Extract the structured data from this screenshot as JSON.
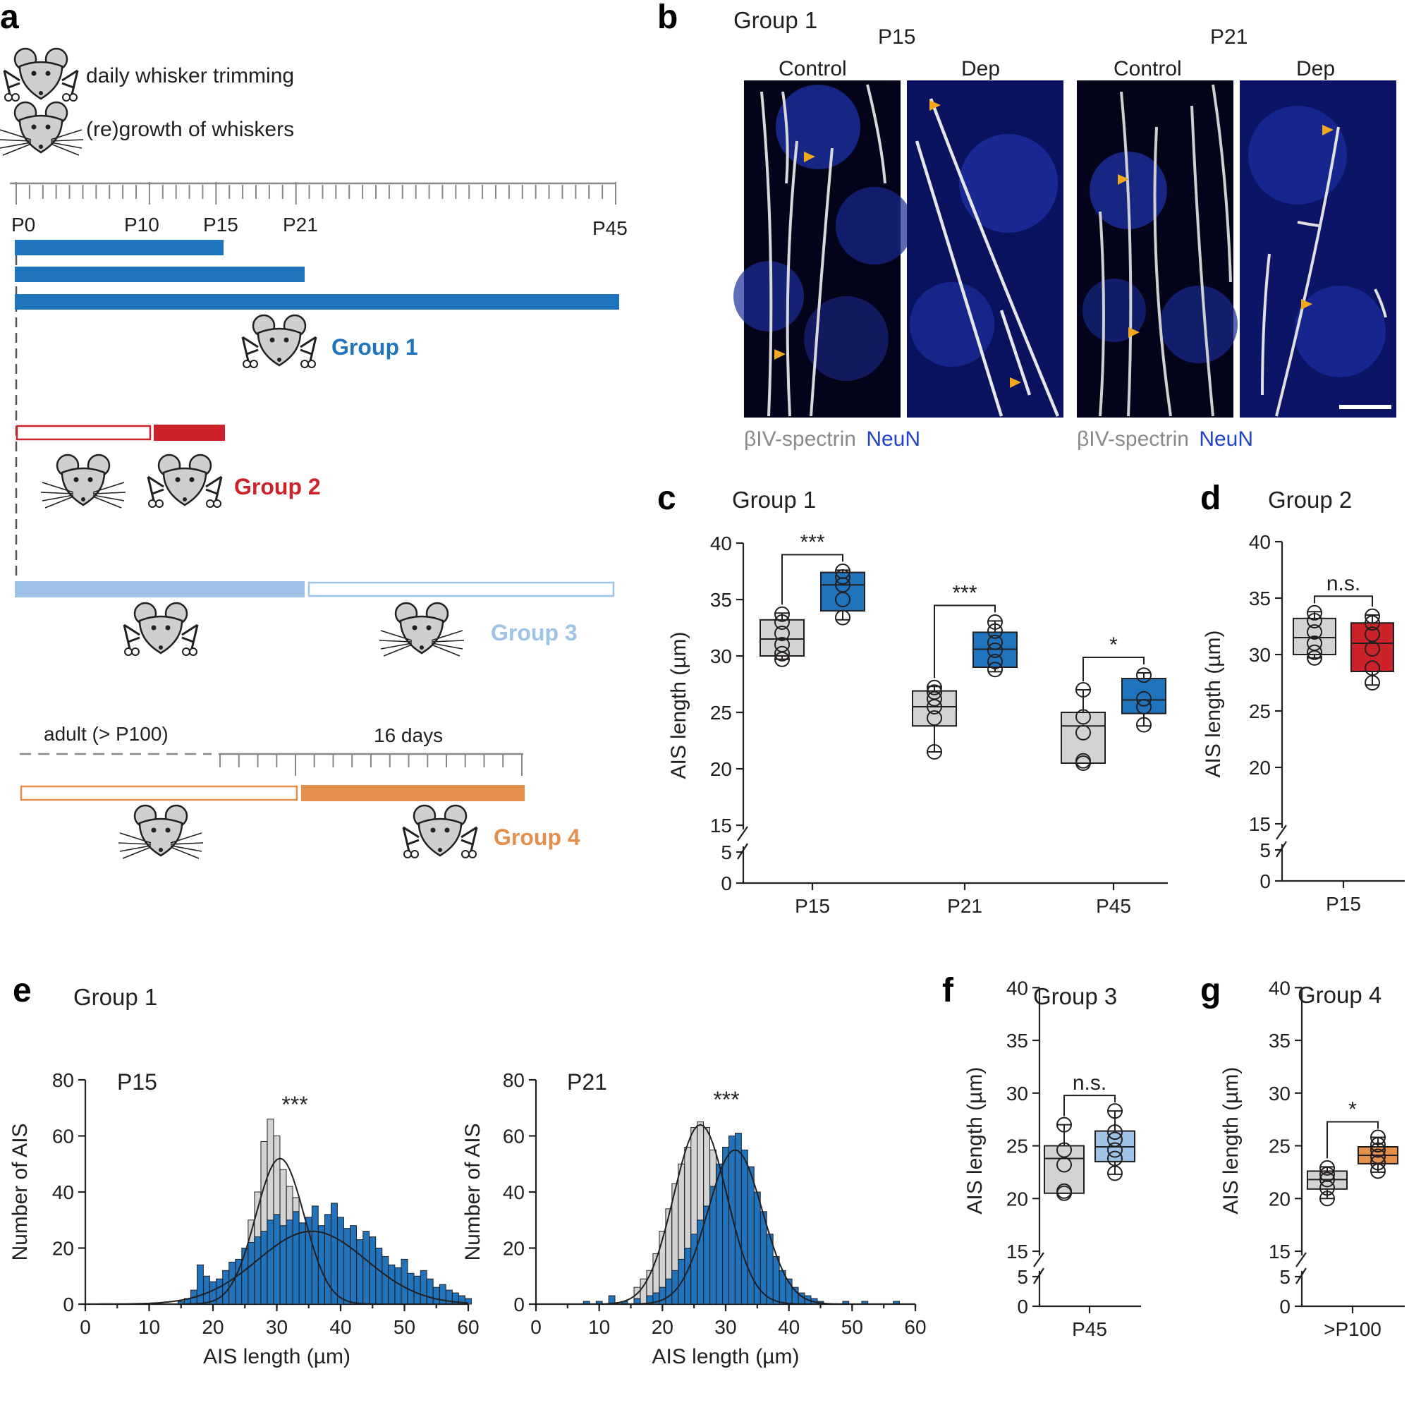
{
  "colors": {
    "g1": "#1f74bd",
    "g2": "#cc2229",
    "g3": "#9ec3e6",
    "g4": "#e48f4c",
    "control": "#d3d3d3",
    "dark": "#231f20",
    "arrow": "#f4a81d",
    "neun": "#2142c8"
  },
  "panel_labels": [
    "a",
    "b",
    "c",
    "d",
    "e",
    "f",
    "g"
  ],
  "panel_a": {
    "legend": {
      "trim": "daily whisker trimming",
      "regrow": "(re)growth of whiskers"
    },
    "timeline_labels": [
      "P0",
      "P10",
      "P15",
      "P21",
      "P45"
    ],
    "groups": [
      "Group 1",
      "Group 2",
      "Group 3",
      "Group 4"
    ],
    "adult_label": "adult (> P100)",
    "days_label": "16 days",
    "icons": [
      "mouse-trim-icon",
      "mouse-regrow-icon"
    ]
  },
  "panel_b": {
    "title": "Group 1",
    "ages": [
      "P15",
      "P21"
    ],
    "conditions": [
      "Control",
      "Dep"
    ],
    "stain1": "βIV-spectrin",
    "stain2": "NeuN"
  },
  "chart_data": [
    {
      "id": "c",
      "type": "box",
      "title": "Group 1",
      "ylabel": "AIS length (µm)",
      "yticks": [
        0,
        5,
        15,
        20,
        25,
        30,
        35,
        40
      ],
      "ylim": [
        0,
        40
      ],
      "axis_break": [
        5,
        15
      ],
      "categories": [
        "P15",
        "P21",
        "P45"
      ],
      "series": [
        {
          "name": "Control",
          "color": "#d3d3d3",
          "boxes": [
            {
              "category": "P15",
              "min": 29.7,
              "q1": 30.0,
              "median": 31.5,
              "q3": 33.2,
              "max": 33.8,
              "points": [
                29.7,
                30.2,
                31.0,
                32.0,
                33.0,
                33.7
              ]
            },
            {
              "category": "P21",
              "min": 21.5,
              "q1": 23.8,
              "median": 25.5,
              "q3": 26.9,
              "max": 27.3,
              "points": [
                21.5,
                24.5,
                25.5,
                26.2,
                26.8,
                27.2
              ]
            },
            {
              "category": "P45",
              "min": 20.5,
              "q1": 20.5,
              "median": 23.8,
              "q3": 25.0,
              "max": 27.0,
              "points": [
                20.5,
                20.7,
                23.2,
                24.6,
                27.0
              ]
            }
          ]
        },
        {
          "name": "Dep",
          "color": "#1f74bd",
          "boxes": [
            {
              "category": "P15",
              "min": 33.2,
              "q1": 34.0,
              "median": 36.3,
              "q3": 37.4,
              "max": 37.6,
              "points": [
                33.4,
                35.0,
                36.3,
                37.0,
                37.5
              ]
            },
            {
              "category": "P21",
              "min": 28.6,
              "q1": 29.0,
              "median": 30.6,
              "q3": 32.1,
              "max": 33.1,
              "points": [
                28.8,
                29.5,
                30.5,
                31.2,
                32.2,
                33.0
              ]
            },
            {
              "category": "P45",
              "min": 23.8,
              "q1": 24.9,
              "median": 26.1,
              "q3": 28.0,
              "max": 28.5,
              "points": [
                23.9,
                25.5,
                26.2,
                28.3
              ]
            }
          ]
        }
      ],
      "significance": [
        "***",
        "***",
        "*"
      ]
    },
    {
      "id": "d",
      "type": "box",
      "title": "Group 2",
      "ylabel": "AIS length (µm)",
      "yticks": [
        0,
        5,
        15,
        20,
        25,
        30,
        35,
        40
      ],
      "ylim": [
        0,
        40
      ],
      "axis_break": [
        5,
        15
      ],
      "categories": [
        "P15"
      ],
      "series": [
        {
          "name": "Control",
          "color": "#d3d3d3",
          "boxes": [
            {
              "category": "P15",
              "min": 29.7,
              "q1": 30.0,
              "median": 31.5,
              "q3": 33.2,
              "max": 33.8,
              "points": [
                29.7,
                30.2,
                31.0,
                32.0,
                33.0,
                33.7
              ]
            }
          ]
        },
        {
          "name": "Dep",
          "color": "#cc2229",
          "boxes": [
            {
              "category": "P15",
              "min": 27.3,
              "q1": 28.5,
              "median": 31.0,
              "q3": 32.8,
              "max": 33.5,
              "points": [
                27.5,
                28.8,
                30.5,
                31.8,
                32.8,
                33.4
              ]
            }
          ]
        }
      ],
      "significance": [
        "n.s."
      ]
    },
    {
      "id": "e1",
      "type": "histogram",
      "title": "P15",
      "xlabel": "AIS length (µm)",
      "ylabel": "Number of AIS",
      "xlim": [
        0,
        60
      ],
      "ylim": [
        0,
        80
      ],
      "xticks": [
        0,
        10,
        20,
        30,
        40,
        50,
        60
      ],
      "yticks": [
        0,
        20,
        40,
        60,
        80
      ],
      "series": [
        {
          "name": "Control",
          "color": "#d3d3d3",
          "fit": {
            "mean": 30.5,
            "sd": 3.8,
            "peak": 52
          },
          "values": [
            [
              26,
              30
            ],
            [
              27,
              40
            ],
            [
              28,
              58
            ],
            [
              29,
              66
            ],
            [
              30,
              60
            ],
            [
              31,
              48
            ],
            [
              32,
              42
            ],
            [
              33,
              38
            ],
            [
              34,
              22
            ]
          ]
        },
        {
          "name": "Dep",
          "color": "#1f74bd",
          "fit": {
            "mean": 35.5,
            "sd": 8.5,
            "peak": 26
          },
          "values": [
            [
              15,
              1
            ],
            [
              16,
              2
            ],
            [
              17,
              5
            ],
            [
              18,
              14
            ],
            [
              19,
              10
            ],
            [
              20,
              8
            ],
            [
              21,
              9
            ],
            [
              22,
              12
            ],
            [
              23,
              15
            ],
            [
              24,
              16
            ],
            [
              25,
              20
            ],
            [
              26,
              22
            ],
            [
              27,
              24
            ],
            [
              28,
              26
            ],
            [
              29,
              30
            ],
            [
              30,
              32
            ],
            [
              31,
              28
            ],
            [
              32,
              30
            ],
            [
              33,
              33
            ],
            [
              34,
              29
            ],
            [
              35,
              31
            ],
            [
              36,
              35
            ],
            [
              37,
              28
            ],
            [
              38,
              32
            ],
            [
              39,
              36
            ],
            [
              40,
              31
            ],
            [
              41,
              27
            ],
            [
              42,
              28
            ],
            [
              43,
              23
            ],
            [
              44,
              26
            ],
            [
              45,
              24
            ],
            [
              46,
              20
            ],
            [
              47,
              17
            ],
            [
              48,
              14
            ],
            [
              49,
              13
            ],
            [
              50,
              16
            ],
            [
              51,
              11
            ],
            [
              52,
              10
            ],
            [
              53,
              12
            ],
            [
              54,
              9
            ],
            [
              55,
              6
            ],
            [
              56,
              7
            ],
            [
              57,
              5
            ],
            [
              58,
              4
            ],
            [
              59,
              3
            ],
            [
              60,
              2
            ]
          ]
        }
      ],
      "significance": "***"
    },
    {
      "id": "e2",
      "type": "histogram",
      "title": "P21",
      "xlabel": "AIS length (µm)",
      "ylabel": "Number of AIS",
      "xlim": [
        0,
        60
      ],
      "ylim": [
        0,
        80
      ],
      "xticks": [
        0,
        10,
        20,
        30,
        40,
        50,
        60
      ],
      "yticks": [
        0,
        20,
        40,
        60,
        80
      ],
      "series": [
        {
          "name": "Control",
          "color": "#d3d3d3",
          "fit": {
            "mean": 26,
            "sd": 4.2,
            "peak": 64
          },
          "values": [
            [
              16,
              6
            ],
            [
              17,
              9
            ],
            [
              18,
              12
            ],
            [
              19,
              18
            ],
            [
              20,
              26
            ],
            [
              21,
              34
            ],
            [
              22,
              43
            ],
            [
              23,
              50
            ],
            [
              24,
              56
            ],
            [
              25,
              63
            ],
            [
              26,
              65
            ],
            [
              27,
              63
            ],
            [
              28,
              55
            ],
            [
              29,
              48
            ],
            [
              30,
              38
            ],
            [
              31,
              26
            ],
            [
              32,
              19
            ],
            [
              33,
              12
            ],
            [
              34,
              6
            ]
          ]
        },
        {
          "name": "Dep",
          "color": "#1f74bd",
          "fit": {
            "mean": 31.5,
            "sd": 4.3,
            "peak": 55
          },
          "values": [
            [
              8,
              1
            ],
            [
              10,
              1
            ],
            [
              12,
              3
            ],
            [
              14,
              1
            ],
            [
              16,
              2
            ],
            [
              18,
              3
            ],
            [
              19,
              4
            ],
            [
              20,
              6
            ],
            [
              21,
              9
            ],
            [
              22,
              12
            ],
            [
              23,
              16
            ],
            [
              24,
              20
            ],
            [
              25,
              25
            ],
            [
              26,
              30
            ],
            [
              27,
              35
            ],
            [
              28,
              42
            ],
            [
              29,
              50
            ],
            [
              30,
              56
            ],
            [
              31,
              60
            ],
            [
              32,
              61
            ],
            [
              33,
              55
            ],
            [
              34,
              49
            ],
            [
              35,
              40
            ],
            [
              36,
              33
            ],
            [
              37,
              25
            ],
            [
              38,
              17
            ],
            [
              39,
              12
            ],
            [
              40,
              9
            ],
            [
              41,
              6
            ],
            [
              42,
              4
            ],
            [
              43,
              3
            ],
            [
              44,
              2
            ],
            [
              45,
              1
            ],
            [
              49,
              1
            ],
            [
              52,
              1
            ],
            [
              57,
              1
            ]
          ]
        }
      ],
      "significance": "***"
    },
    {
      "id": "f",
      "type": "box",
      "title": "Group 3",
      "ylabel": "AIS length (µm)",
      "yticks": [
        0,
        5,
        15,
        20,
        25,
        30,
        35,
        40
      ],
      "ylim": [
        0,
        40
      ],
      "axis_break": [
        5,
        15
      ],
      "categories": [
        "P45"
      ],
      "series": [
        {
          "name": "Control",
          "color": "#d3d3d3",
          "boxes": [
            {
              "category": "P45",
              "min": 20.5,
              "q1": 20.5,
              "median": 23.8,
              "q3": 25.0,
              "max": 27.0,
              "points": [
                20.5,
                20.7,
                23.2,
                24.6,
                27.0
              ]
            }
          ]
        },
        {
          "name": "Dep",
          "color": "#9ec3e6",
          "boxes": [
            {
              "category": "P45",
              "min": 22.3,
              "q1": 23.5,
              "median": 24.9,
              "q3": 26.4,
              "max": 28.3,
              "points": [
                22.4,
                23.8,
                24.6,
                25.6,
                26.3,
                28.3
              ]
            }
          ]
        }
      ],
      "significance": [
        "n.s."
      ]
    },
    {
      "id": "g",
      "type": "box",
      "title": "Group 4",
      "ylabel": "AIS length (µm)",
      "yticks": [
        0,
        5,
        15,
        20,
        25,
        30,
        35,
        40
      ],
      "ylim": [
        0,
        40
      ],
      "axis_break": [
        5,
        15
      ],
      "categories": [
        ">P100"
      ],
      "series": [
        {
          "name": "Control",
          "color": "#d3d3d3",
          "boxes": [
            {
              "category": ">P100",
              "min": 20.0,
              "q1": 20.9,
              "median": 21.8,
              "q3": 22.6,
              "max": 23.0,
              "points": [
                20.0,
                21.0,
                21.8,
                22.3,
                22.9
              ]
            }
          ]
        },
        {
          "name": "Dep",
          "color": "#e48f4c",
          "boxes": [
            {
              "category": ">P100",
              "min": 22.5,
              "q1": 23.3,
              "median": 24.1,
              "q3": 24.9,
              "max": 25.8,
              "points": [
                22.6,
                23.4,
                24.0,
                24.6,
                25.1,
                25.8
              ]
            }
          ]
        }
      ],
      "significance": [
        "*"
      ]
    }
  ]
}
